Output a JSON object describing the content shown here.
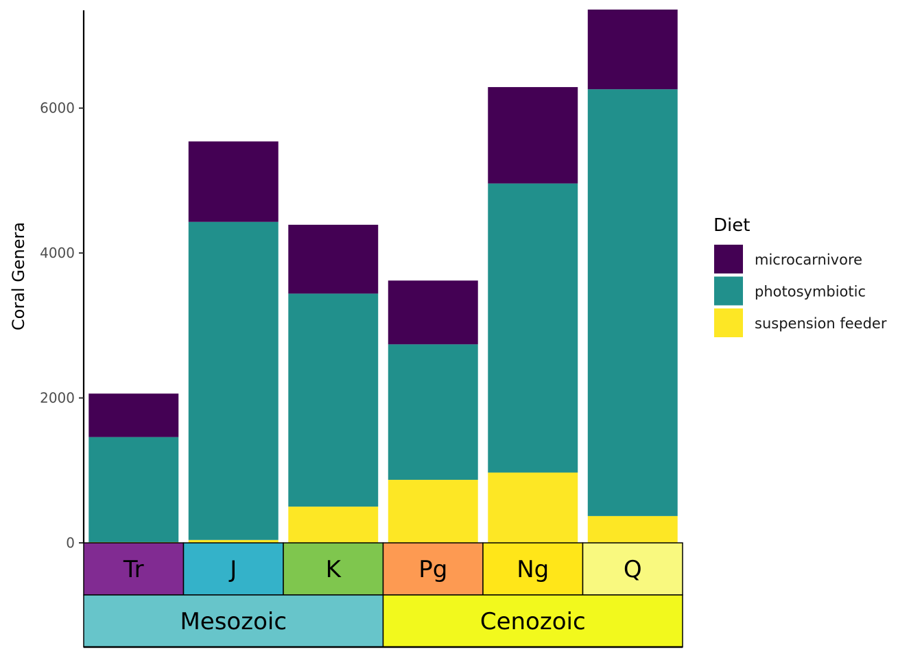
{
  "chart_data": {
    "type": "bar",
    "stacked": true,
    "title": "",
    "xlabel": "",
    "ylabel": "Coral Genera",
    "ylim": [
      0,
      7350
    ],
    "yticks": [
      0,
      2000,
      4000,
      6000
    ],
    "ytick_labels": [
      "0",
      "2000",
      "4000",
      "6000"
    ],
    "categories": [
      "Tr",
      "J",
      "K",
      "Pg",
      "Ng",
      "Q"
    ],
    "series": [
      {
        "name": "suspension feeder",
        "color": "#FDE725",
        "values": [
          10,
          40,
          500,
          870,
          970,
          370
        ]
      },
      {
        "name": "photosymbiotic",
        "color": "#21908C",
        "values": [
          1450,
          4390,
          2940,
          1870,
          3990,
          5890
        ]
      },
      {
        "name": "microcarnivore",
        "color": "#440154",
        "values": [
          600,
          1110,
          950,
          880,
          1330,
          1100
        ]
      }
    ],
    "legend": {
      "title": "Diet",
      "position": "right"
    },
    "period_colors": [
      "#812B92",
      "#34B2C9",
      "#7FC64E",
      "#FD9A52",
      "#FFE619",
      "#F9F97F"
    ],
    "eras": [
      {
        "name": "Mesozoic",
        "color": "#67C5CA",
        "span": [
          "Tr",
          "K"
        ]
      },
      {
        "name": "Cenozoic",
        "color": "#F2F91D",
        "span": [
          "Pg",
          "Q"
        ]
      }
    ]
  }
}
